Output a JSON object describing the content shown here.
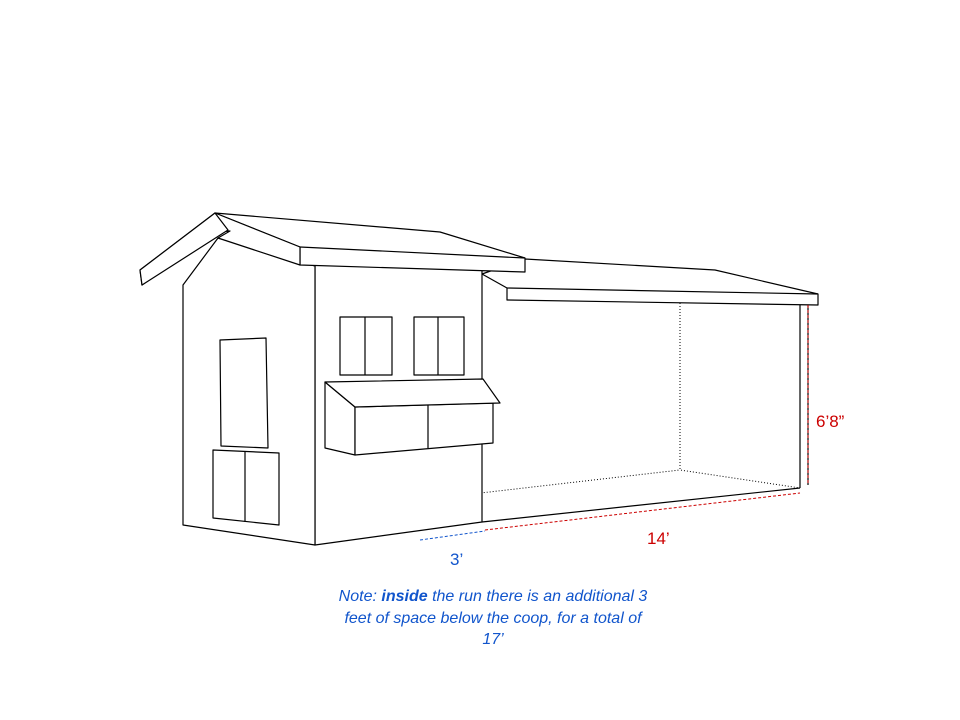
{
  "dimensions": {
    "height": "6’8”",
    "run_length": "14’",
    "coop_length": "3’"
  },
  "note": {
    "prefix": "Note:",
    "emphasis": "inside",
    "text": "the run there is an additional 3 feet of space below the coop, for a total of 17’"
  }
}
